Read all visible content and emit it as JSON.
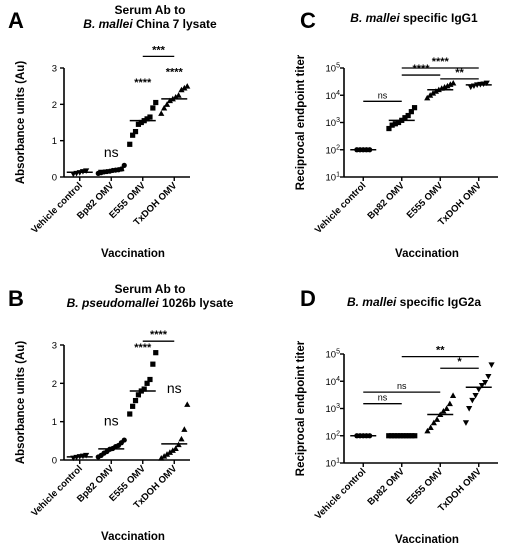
{
  "chart_data": [
    {
      "panel": "A",
      "type": "scatter",
      "title_lines": [
        "Serum Ab to",
        "B. mallei China 7 lysate"
      ],
      "title_italic": "B. mallei",
      "ylabel": "Absorbance units (Au)",
      "xlabel": "Vaccination",
      "ylim": [
        0,
        3
      ],
      "yscale": "linear",
      "yticks": [
        "0",
        "1",
        "2",
        "3"
      ],
      "categories": [
        "Vehicle  control",
        "Bp82 OMV",
        "E555 OMV",
        "TxDOH OMV"
      ],
      "markers": [
        "tri-down",
        "circle",
        "square",
        "tri-up"
      ],
      "points": [
        [
          0.08,
          0.1,
          0.12,
          0.15,
          0.17
        ],
        [
          0.1,
          0.12,
          0.14,
          0.15,
          0.16,
          0.18,
          0.19,
          0.2,
          0.22,
          0.32
        ],
        [
          0.9,
          1.15,
          1.25,
          1.45,
          1.5,
          1.55,
          1.6,
          1.65,
          1.9,
          2.05
        ],
        [
          1.75,
          1.9,
          2.0,
          2.1,
          2.15,
          2.2,
          2.25,
          2.4,
          2.45,
          2.5
        ]
      ],
      "means": [
        0.13,
        0.18,
        1.55,
        2.15
      ],
      "annotations": [
        {
          "text": "ns",
          "cat": 1,
          "y": 0.55
        },
        {
          "text": "****",
          "cat": 2,
          "y": 2.5
        },
        {
          "text": "****",
          "cat": 3,
          "y": 2.8
        }
      ],
      "brackets": [
        {
          "from": 2,
          "to": 3,
          "y": 3.32,
          "text": "***"
        }
      ]
    },
    {
      "panel": "B",
      "type": "scatter",
      "title_lines": [
        "Serum Ab to",
        "B. pseudomallei 1026b lysate"
      ],
      "title_italic": "B. pseudomallei",
      "ylabel": "Absorbance units (Au)",
      "xlabel": "Vaccination",
      "ylim": [
        0,
        3
      ],
      "yscale": "linear",
      "yticks": [
        "0",
        "1",
        "2",
        "3"
      ],
      "categories": [
        "Vehicle  control",
        "Bp82 OMV",
        "E555 OMV",
        "TxDOH OMV"
      ],
      "markers": [
        "tri-down",
        "circle",
        "square",
        "tri-up"
      ],
      "points": [
        [
          0.05,
          0.07,
          0.09,
          0.1,
          0.12
        ],
        [
          0.08,
          0.12,
          0.18,
          0.22,
          0.28,
          0.3,
          0.35,
          0.38,
          0.45,
          0.52
        ],
        [
          1.2,
          1.4,
          1.55,
          1.7,
          1.8,
          1.85,
          2.0,
          2.1,
          2.5,
          2.8
        ],
        [
          0.05,
          0.1,
          0.15,
          0.2,
          0.25,
          0.3,
          0.4,
          0.55,
          0.8,
          1.45
        ]
      ],
      "means": [
        0.08,
        0.29,
        1.8,
        0.42
      ],
      "annotations": [
        {
          "text": "ns",
          "cat": 1,
          "y": 0.9
        },
        {
          "text": "****",
          "cat": 2,
          "y": 2.85
        },
        {
          "text": "ns",
          "cat": 3,
          "y": 1.75
        }
      ],
      "brackets": [
        {
          "from": 2,
          "to": 3,
          "y": 3.1,
          "text": "****"
        }
      ]
    },
    {
      "panel": "C",
      "type": "scatter",
      "title_lines": [
        "B. mallei specific IgG1"
      ],
      "title_italic": "B. mallei",
      "ylabel": "Reciprocal endpoint titer",
      "xlabel": "Vaccination",
      "ylim": [
        10,
        100000
      ],
      "yscale": "log",
      "yticks": [
        "10",
        "10",
        "10",
        "10",
        "10"
      ],
      "ytick_exponents": [
        "1",
        "2",
        "3",
        "4",
        "5"
      ],
      "categories": [
        "Vehicle  control",
        "Bp82 OMV",
        "E555 OMV",
        "TxDOH OMV"
      ],
      "markers": [
        "circle",
        "square",
        "tri-up",
        "tri-down"
      ],
      "points": [
        [
          100,
          100,
          100,
          100,
          100
        ],
        [
          600,
          800,
          900,
          1000,
          1200,
          1500,
          1800,
          2500,
          3500
        ],
        [
          8000,
          10000,
          12000,
          14000,
          16000,
          18000,
          20000,
          22000,
          25000,
          28000
        ],
        [
          20000,
          22000,
          24000,
          25000,
          26000,
          28000
        ]
      ],
      "means": [
        100,
        1200,
        16000,
        24000
      ],
      "annotations": [],
      "brackets": [
        {
          "from": 0,
          "to": 1,
          "y": 6000,
          "text": "ns"
        },
        {
          "from": 1,
          "to": 3,
          "y": 100000,
          "text": "****"
        },
        {
          "from": 1,
          "to": 2,
          "y": 55000,
          "text": "****"
        },
        {
          "from": 2,
          "to": 3,
          "y": 40000,
          "text": "**"
        }
      ]
    },
    {
      "panel": "D",
      "type": "scatter",
      "title_lines": [
        "B. mallei specific IgG2a"
      ],
      "title_italic": "B. mallei",
      "ylabel": "Reciprocal endpoint titer",
      "xlabel": "Vaccination",
      "ylim": [
        10,
        100000
      ],
      "yscale": "log",
      "yticks": [
        "10",
        "10",
        "10",
        "10",
        "10"
      ],
      "ytick_exponents": [
        "1",
        "2",
        "3",
        "4",
        "5"
      ],
      "categories": [
        "Vehicle  control",
        "Bp82 OMV",
        "E555 OMV",
        "TxDOH OMV"
      ],
      "markers": [
        "circle",
        "square",
        "tri-up",
        "tri-down"
      ],
      "points": [
        [
          100,
          100,
          100,
          100,
          100
        ],
        [
          100,
          100,
          100,
          100,
          100,
          100,
          100,
          100,
          100,
          100
        ],
        [
          150,
          200,
          300,
          400,
          600,
          800,
          1000,
          1500,
          3000
        ],
        [
          300,
          1000,
          2000,
          3000,
          5000,
          7000,
          9000,
          15000,
          40000
        ]
      ],
      "means": [
        100,
        100,
        600,
        6000
      ],
      "annotations": [],
      "brackets": [
        {
          "from": 0,
          "to": 1,
          "y": 1500,
          "text": "ns"
        },
        {
          "from": 0,
          "to": 2,
          "y": 4000,
          "text": "ns"
        },
        {
          "from": 1,
          "to": 3,
          "y": 80000,
          "text": "**"
        },
        {
          "from": 2,
          "to": 3,
          "y": 30000,
          "text": "*"
        }
      ]
    }
  ]
}
